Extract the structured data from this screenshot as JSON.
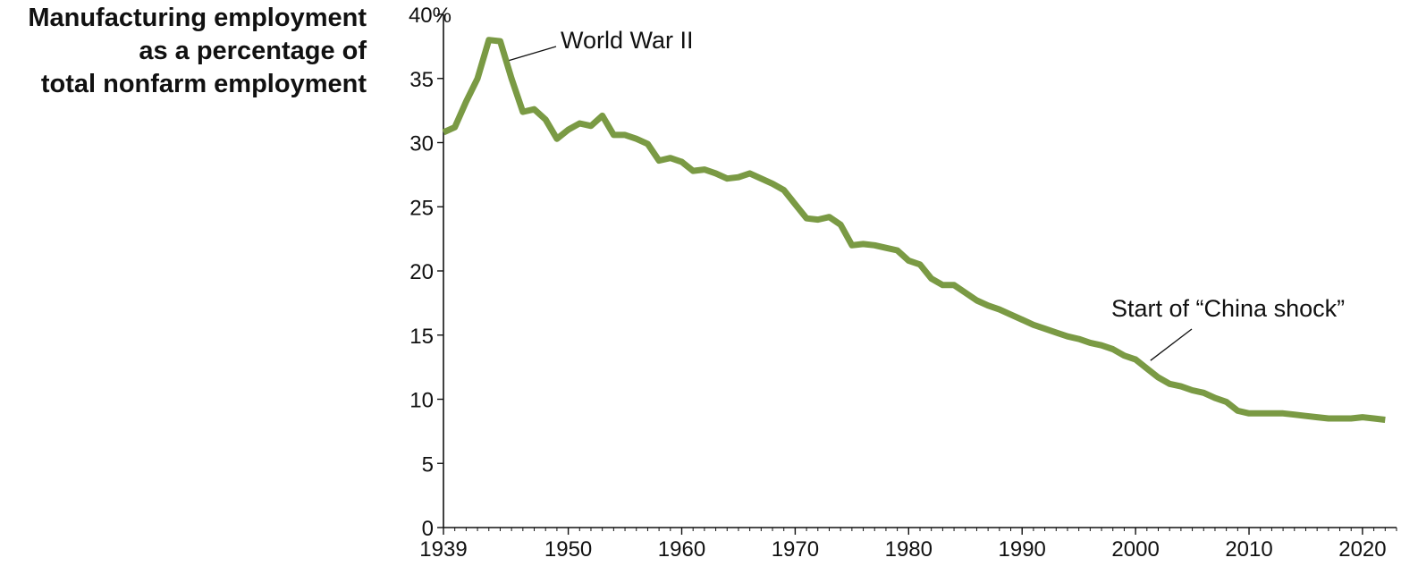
{
  "chart_data": {
    "type": "line",
    "title": "",
    "ylabel_lines": [
      "Manufacturing employment",
      "as a percentage of",
      "total nonfarm employment"
    ],
    "xlabel": "",
    "xlim": [
      1939,
      2023
    ],
    "ylim": [
      0,
      40
    ],
    "x_ticks": [
      {
        "value": 1939,
        "label": "1939"
      },
      {
        "value": 1950,
        "label": "1950"
      },
      {
        "value": 1960,
        "label": "1960"
      },
      {
        "value": 1970,
        "label": "1970"
      },
      {
        "value": 1980,
        "label": "1980"
      },
      {
        "value": 1990,
        "label": "1990"
      },
      {
        "value": 2000,
        "label": "2000"
      },
      {
        "value": 2010,
        "label": "2010"
      },
      {
        "value": 2020,
        "label": "2020"
      }
    ],
    "y_ticks": [
      {
        "value": 0,
        "label": "0"
      },
      {
        "value": 5,
        "label": "5"
      },
      {
        "value": 10,
        "label": "10"
      },
      {
        "value": 15,
        "label": "15"
      },
      {
        "value": 20,
        "label": "20"
      },
      {
        "value": 25,
        "label": "25"
      },
      {
        "value": 30,
        "label": "30"
      },
      {
        "value": 35,
        "label": "35"
      },
      {
        "value": 40,
        "label": "40%"
      }
    ],
    "grid": false,
    "line_color": "#7a9a44",
    "series": [
      {
        "x": [
          1939,
          1940,
          1941,
          1942,
          1943,
          1944,
          1945,
          1946,
          1947,
          1948,
          1949,
          1950,
          1951,
          1952,
          1953,
          1954,
          1955,
          1956,
          1957,
          1958,
          1959,
          1960,
          1961,
          1962,
          1963,
          1964,
          1965,
          1966,
          1967,
          1968,
          1969,
          1970,
          1971,
          1972,
          1973,
          1974,
          1975,
          1976,
          1977,
          1978,
          1979,
          1980,
          1981,
          1982,
          1983,
          1984,
          1985,
          1986,
          1987,
          1988,
          1989,
          1990,
          1991,
          1992,
          1993,
          1994,
          1995,
          1996,
          1997,
          1998,
          1999,
          2000,
          2001,
          2002,
          2003,
          2004,
          2005,
          2006,
          2007,
          2008,
          2009,
          2010,
          2011,
          2012,
          2013,
          2014,
          2015,
          2016,
          2017,
          2018,
          2019,
          2020,
          2021,
          2022
        ],
        "y": [
          30.8,
          31.2,
          33.2,
          35.0,
          38.0,
          37.9,
          35.0,
          32.4,
          32.6,
          31.8,
          30.3,
          31.0,
          31.5,
          31.3,
          32.1,
          30.6,
          30.6,
          30.3,
          29.9,
          28.6,
          28.8,
          28.5,
          27.8,
          27.9,
          27.6,
          27.2,
          27.3,
          27.6,
          27.2,
          26.8,
          26.3,
          25.2,
          24.1,
          24.0,
          24.2,
          23.6,
          22.0,
          22.1,
          22.0,
          21.8,
          21.6,
          20.8,
          20.5,
          19.4,
          18.9,
          18.9,
          18.3,
          17.7,
          17.3,
          17.0,
          16.6,
          16.2,
          15.8,
          15.5,
          15.2,
          14.9,
          14.7,
          14.4,
          14.2,
          13.9,
          13.4,
          13.1,
          12.4,
          11.7,
          11.2,
          11.0,
          10.7,
          10.5,
          10.1,
          9.8,
          9.1,
          8.9,
          8.9,
          8.9,
          8.9,
          8.8,
          8.7,
          8.6,
          8.5,
          8.5,
          8.5,
          8.6,
          8.5,
          8.4
        ]
      }
    ],
    "annotations": [
      {
        "text": "World War II",
        "x": 1944,
        "y": 36.0
      },
      {
        "text": "Start of “China shock”",
        "x": 2001,
        "y": 12.6
      }
    ]
  }
}
